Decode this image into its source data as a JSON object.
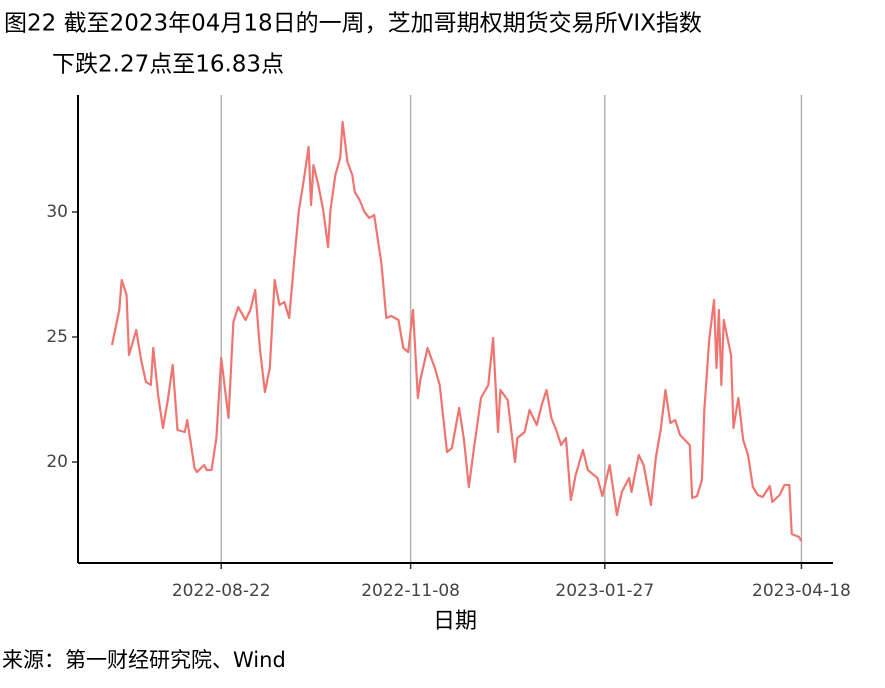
{
  "chart_data": {
    "type": "line",
    "title": [
      "图22  截至2023年04月18日的一周，芝加哥期权期货交易所VIX指数",
      "下跌2.27点至16.83点"
    ],
    "x_label": "日期",
    "source": "来源：第一财经研究院、Wind",
    "color": "#f07470",
    "grid": true,
    "xlim": [
      "2022-06-24",
      "2023-05-01"
    ],
    "xticks": [
      "2022-08-22",
      "2022-11-08",
      "2023-01-27",
      "2023-04-18"
    ],
    "ylim": [
      15.96,
      34.68
    ],
    "yticks": [
      20,
      25,
      30
    ],
    "x": [
      "2022-07-08",
      "2022-07-11",
      "2022-07-12",
      "2022-07-14",
      "2022-07-15",
      "2022-07-18",
      "2022-07-20",
      "2022-07-22",
      "2022-07-24",
      "2022-07-25",
      "2022-07-27",
      "2022-07-29",
      "2022-07-31",
      "2022-08-02",
      "2022-08-04",
      "2022-08-07",
      "2022-08-08",
      "2022-08-11",
      "2022-08-12",
      "2022-08-15",
      "2022-08-16",
      "2022-08-18",
      "2022-08-20",
      "2022-08-22",
      "2022-08-25",
      "2022-08-27",
      "2022-08-29",
      "2022-09-01",
      "2022-09-03",
      "2022-09-05",
      "2022-09-07",
      "2022-09-09",
      "2022-09-11",
      "2022-09-13",
      "2022-09-15",
      "2022-09-17",
      "2022-09-19",
      "2022-09-21",
      "2022-09-23",
      "2022-09-25",
      "2022-09-27",
      "2022-09-28",
      "2022-09-29",
      "2022-10-01",
      "2022-10-03",
      "2022-10-05",
      "2022-10-06",
      "2022-10-08",
      "2022-10-10",
      "2022-10-11",
      "2022-10-13",
      "2022-10-15",
      "2022-10-16",
      "2022-10-18",
      "2022-10-20",
      "2022-10-22",
      "2022-10-24",
      "2022-10-27",
      "2022-10-29",
      "2022-10-31",
      "2022-11-03",
      "2022-11-05",
      "2022-11-07",
      "2022-11-09",
      "2022-11-11",
      "2022-11-12",
      "2022-11-15",
      "2022-11-18",
      "2022-11-20",
      "2022-11-23",
      "2022-11-25",
      "2022-11-28",
      "2022-11-30",
      "2022-12-02",
      "2022-12-04",
      "2022-12-07",
      "2022-12-10",
      "2022-12-12",
      "2022-12-14",
      "2022-12-15",
      "2022-12-18",
      "2022-12-21",
      "2022-12-22",
      "2022-12-25",
      "2022-12-27",
      "2022-12-30",
      "2023-01-01",
      "2023-01-03",
      "2023-01-05",
      "2023-01-07",
      "2023-01-09",
      "2023-01-11",
      "2023-01-13",
      "2023-01-15",
      "2023-01-18",
      "2023-01-20",
      "2023-01-24",
      "2023-01-26",
      "2023-01-29",
      "2023-02-01",
      "2023-02-03",
      "2023-02-06",
      "2023-02-07",
      "2023-02-10",
      "2023-02-12",
      "2023-02-15",
      "2023-02-17",
      "2023-02-19",
      "2023-02-21",
      "2023-02-23",
      "2023-02-25",
      "2023-02-27",
      "2023-03-03",
      "2023-03-04",
      "2023-03-06",
      "2023-03-08",
      "2023-03-09",
      "2023-03-11",
      "2023-03-13",
      "2023-03-14",
      "2023-03-15",
      "2023-03-16",
      "2023-03-17",
      "2023-03-20",
      "2023-03-21",
      "2023-03-23",
      "2023-03-25",
      "2023-03-27",
      "2023-03-29",
      "2023-03-31",
      "2023-04-02",
      "2023-04-05",
      "2023-04-06",
      "2023-04-09",
      "2023-04-11",
      "2023-04-13",
      "2023-04-14",
      "2023-04-17",
      "2023-04-18"
    ],
    "values": [
      24.68,
      26.08,
      27.28,
      26.68,
      24.28,
      25.28,
      24.08,
      23.2,
      23.08,
      24.56,
      22.68,
      21.36,
      22.48,
      23.88,
      21.28,
      21.2,
      21.68,
      19.76,
      19.6,
      19.88,
      19.68,
      19.68,
      20.96,
      24.16,
      21.76,
      25.6,
      26.2,
      25.68,
      26.08,
      26.88,
      24.48,
      22.8,
      23.76,
      27.28,
      26.28,
      26.4,
      25.76,
      28,
      30.08,
      31.28,
      32.6,
      30.28,
      31.88,
      31.08,
      30.08,
      28.6,
      30.08,
      31.48,
      32.16,
      33.6,
      32,
      31.48,
      30.8,
      30.48,
      30,
      29.76,
      29.88,
      27.92,
      25.76,
      25.84,
      25.68,
      24.56,
      24.4,
      26.08,
      22.56,
      23.28,
      24.56,
      23.76,
      23.08,
      20.4,
      20.56,
      22.16,
      20.88,
      19,
      20.48,
      22.56,
      23.08,
      24.96,
      21.2,
      22.88,
      22.48,
      20,
      20.96,
      21.2,
      22.08,
      21.48,
      22.28,
      22.88,
      21.76,
      21.28,
      20.68,
      20.96,
      18.48,
      19.48,
      20.48,
      19.68,
      19.36,
      18.64,
      19.88,
      17.88,
      18.8,
      19.36,
      18.8,
      20.28,
      19.88,
      18.28,
      20.16,
      21.28,
      22.88,
      21.56,
      21.68,
      21.08,
      20.68,
      18.56,
      18.64,
      19.28,
      22.08,
      24.88,
      26.48,
      23.76,
      26.08,
      23.08,
      25.68,
      24.28,
      21.36,
      22.56,
      20.88,
      20.28,
      19,
      18.68,
      18.6,
      19.04,
      18.4,
      18.68,
      19.08,
      19.08,
      17.12,
      17,
      16.83
    ]
  }
}
